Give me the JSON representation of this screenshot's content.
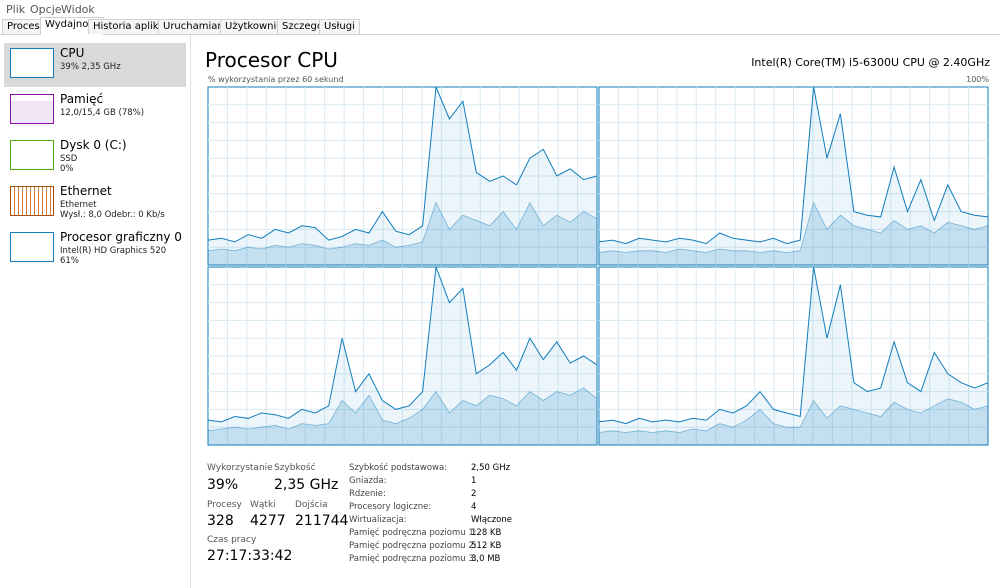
{
  "menu": [
    "Plik",
    "Opcje",
    "Widok"
  ],
  "tabs": [
    "Procesy",
    "Wydajność",
    "Historia aplikacji",
    "Uruchamianie",
    "Użytkownicy",
    "Szczegóły",
    "Usługi"
  ],
  "sidebar": [
    {
      "title": "CPU",
      "lines": [
        "39% 2,35 GHz"
      ]
    },
    {
      "title": "Pamięć",
      "lines": [
        "12,0/15,4 GB (78%)"
      ]
    },
    {
      "title": "Dysk 0 (C:)",
      "lines": [
        "SSD",
        "0%"
      ]
    },
    {
      "title": "Ethernet",
      "lines": [
        "Ethernet",
        "Wysł.: 8,0 Odebr.: 0 Kb/s"
      ]
    },
    {
      "title": "Procesor graficzny 0",
      "lines": [
        "Intel(R) HD Graphics 520",
        "61%"
      ]
    }
  ],
  "header": {
    "title": "Procesor CPU",
    "cpu_name": "Intel(R) Core(TM) i5-6300U CPU @ 2.40GHz",
    "graph_label": "% wykorzystania przez 60 sekund",
    "graph_max": "100%"
  },
  "cores": [
    {
      "values": [
        14,
        15,
        13,
        17,
        15,
        20,
        18,
        22,
        21,
        14,
        16,
        20,
        18,
        30,
        19,
        17,
        22,
        100,
        82,
        92,
        52,
        47,
        50,
        45,
        60,
        65,
        50,
        54,
        48,
        50
      ],
      "kernel": [
        8,
        9,
        8,
        10,
        9,
        11,
        10,
        12,
        11,
        9,
        10,
        12,
        11,
        14,
        10,
        11,
        13,
        35,
        20,
        28,
        25,
        22,
        30,
        20,
        35,
        22,
        28,
        24,
        30,
        26
      ]
    },
    {
      "values": [
        13,
        14,
        12,
        15,
        14,
        13,
        15,
        14,
        12,
        18,
        15,
        14,
        13,
        15,
        12,
        14,
        100,
        60,
        85,
        30,
        28,
        27,
        55,
        30,
        48,
        25,
        45,
        30,
        28,
        27
      ],
      "kernel": [
        7,
        8,
        7,
        8,
        8,
        7,
        9,
        8,
        7,
        9,
        8,
        8,
        7,
        8,
        7,
        8,
        35,
        20,
        28,
        22,
        20,
        18,
        25,
        20,
        22,
        18,
        24,
        22,
        20,
        22
      ]
    },
    {
      "values": [
        14,
        13,
        16,
        15,
        18,
        17,
        15,
        20,
        18,
        22,
        60,
        30,
        40,
        25,
        20,
        22,
        30,
        100,
        80,
        88,
        40,
        45,
        52,
        42,
        60,
        48,
        58,
        46,
        50,
        45
      ],
      "kernel": [
        8,
        9,
        10,
        9,
        10,
        11,
        9,
        12,
        11,
        12,
        25,
        18,
        28,
        14,
        12,
        15,
        20,
        30,
        18,
        25,
        22,
        28,
        26,
        22,
        30,
        25,
        30,
        28,
        32,
        26
      ]
    },
    {
      "values": [
        13,
        14,
        12,
        15,
        13,
        14,
        13,
        15,
        14,
        20,
        18,
        22,
        30,
        20,
        18,
        16,
        100,
        60,
        90,
        35,
        30,
        32,
        58,
        35,
        30,
        52,
        40,
        35,
        32,
        35
      ],
      "kernel": [
        7,
        8,
        7,
        8,
        7,
        8,
        7,
        9,
        8,
        12,
        10,
        14,
        20,
        12,
        10,
        10,
        25,
        15,
        22,
        20,
        18,
        16,
        24,
        20,
        18,
        22,
        26,
        24,
        20,
        22
      ]
    }
  ],
  "stats": [
    {
      "label": "Wykorzystanie",
      "value": "39%"
    },
    {
      "label": "Szybkość",
      "value": "2,35 GHz"
    },
    {
      "label": "Procesy",
      "value": "328"
    },
    {
      "label": "Wątki",
      "value": "4277"
    },
    {
      "label": "Dojścia",
      "value": "211744"
    },
    {
      "label": "Czas pracy",
      "value": "27:17:33:42"
    }
  ],
  "details": [
    {
      "label": "Szybkość podstawowa:",
      "value": "2,50 GHz"
    },
    {
      "label": "Gniazda:",
      "value": "1"
    },
    {
      "label": "Rdzenie:",
      "value": "2"
    },
    {
      "label": "Procesory logiczne:",
      "value": "4"
    },
    {
      "label": "Wirtualizacja:",
      "value": "Włączone"
    },
    {
      "label": "Pamięć podręczna poziomu 1:",
      "value": "128 KB"
    },
    {
      "label": "Pamięć podręczna poziomu 2:",
      "value": "512 KB"
    },
    {
      "label": "Pamięć podręczna poziomu 3:",
      "value": "3,0 MB"
    }
  ]
}
